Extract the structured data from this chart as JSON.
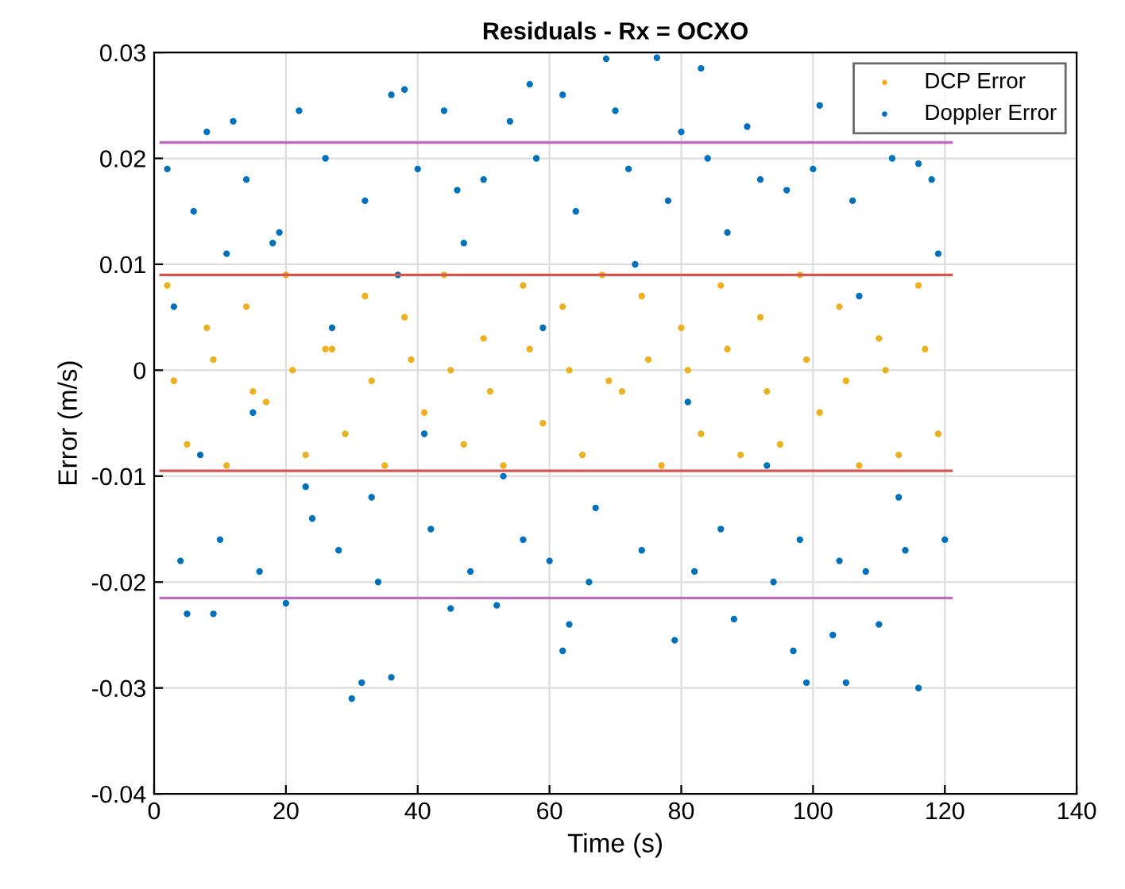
{
  "chart_data": {
    "type": "scatter",
    "title": "Residuals - Rx = OCXO",
    "xlabel": "Time (s)",
    "ylabel": "Error (m/s)",
    "xlim": [
      0,
      140
    ],
    "xticks": [
      0,
      20,
      40,
      60,
      80,
      100,
      120,
      140
    ],
    "ylim": [
      -0.04,
      0.03
    ],
    "yticks": [
      -0.04,
      -0.03,
      -0.02,
      -0.01,
      0,
      0.01,
      0.02,
      0.03
    ],
    "grid": true,
    "legend": "top right",
    "marker": "circle",
    "series": [
      {
        "type": "line",
        "marker": "none",
        "color": "#c06bc0",
        "x": [
          1,
          121
        ],
        "values": [
          0.0215,
          0.0215
        ]
      },
      {
        "type": "line",
        "marker": "none",
        "color": "#c06bc0",
        "x": [
          1,
          121
        ],
        "values": [
          -0.0215,
          -0.0215
        ]
      },
      {
        "name": "Doppler Error",
        "color": "#0072bd",
        "x": [
          68.6,
          76.3,
          83,
          57,
          62,
          36,
          38,
          22,
          8,
          12,
          44,
          54,
          70,
          80,
          101,
          90,
          116,
          30,
          31.5,
          36,
          62,
          79,
          99,
          105,
          116,
          97,
          103,
          5,
          9,
          20,
          45,
          52,
          63,
          88,
          110,
          2,
          4,
          6,
          10,
          14,
          16,
          18,
          24,
          26,
          28,
          32,
          34,
          40,
          42,
          46,
          48,
          50,
          56,
          58,
          60,
          64,
          66,
          72,
          74,
          78,
          82,
          84,
          86,
          92,
          94,
          96,
          98,
          100,
          104,
          106,
          108,
          112,
          114,
          118,
          120,
          3,
          7,
          11,
          15,
          19,
          23,
          27,
          33,
          37,
          41,
          47,
          53,
          59,
          67,
          73,
          81,
          87,
          93,
          107,
          113,
          119
        ],
        "values": [
          0.0294,
          0.0295,
          0.0285,
          0.027,
          0.026,
          0.026,
          0.0265,
          0.0245,
          0.0225,
          0.0235,
          0.0245,
          0.0235,
          0.0245,
          0.0225,
          0.025,
          0.023,
          0.0195,
          -0.031,
          -0.0295,
          -0.029,
          -0.0265,
          -0.0255,
          -0.0295,
          -0.0295,
          -0.03,
          -0.0265,
          -0.025,
          -0.023,
          -0.023,
          -0.022,
          -0.0225,
          -0.0222,
          -0.024,
          -0.0235,
          -0.024,
          0.019,
          -0.018,
          0.015,
          -0.016,
          0.018,
          -0.019,
          0.012,
          -0.014,
          0.02,
          -0.017,
          0.016,
          -0.02,
          0.019,
          -0.015,
          0.017,
          -0.019,
          0.018,
          -0.016,
          0.02,
          -0.018,
          0.015,
          -0.02,
          0.019,
          -0.017,
          0.016,
          -0.019,
          0.02,
          -0.015,
          0.018,
          -0.02,
          0.017,
          -0.016,
          0.019,
          -0.018,
          0.016,
          -0.019,
          0.02,
          -0.017,
          0.018,
          -0.016,
          0.006,
          -0.008,
          0.011,
          -0.004,
          0.013,
          -0.011,
          0.004,
          -0.012,
          0.009,
          -0.006,
          0.012,
          -0.01,
          0.004,
          -0.013,
          0.01,
          -0.003,
          0.013,
          -0.009,
          0.007,
          -0.012,
          0.011
        ]
      },
      {
        "name": "DCP Error",
        "color": "#edb120",
        "x": [
          2,
          5,
          8,
          11,
          14,
          17,
          20,
          23,
          26,
          29,
          32,
          35,
          38,
          41,
          44,
          47,
          50,
          53,
          56,
          59,
          62,
          65,
          68,
          71,
          74,
          77,
          80,
          83,
          86,
          89,
          92,
          95,
          98,
          101,
          104,
          107,
          110,
          113,
          116,
          119,
          3,
          9,
          15,
          21,
          27,
          33,
          39,
          45,
          51,
          57,
          63,
          69,
          75,
          81,
          87,
          93,
          99,
          105,
          111,
          117
        ],
        "values": [
          0.008,
          -0.007,
          0.004,
          -0.009,
          0.006,
          -0.003,
          0.009,
          -0.008,
          0.002,
          -0.006,
          0.007,
          -0.009,
          0.005,
          -0.004,
          0.009,
          -0.007,
          0.003,
          -0.009,
          0.008,
          -0.005,
          0.006,
          -0.008,
          0.009,
          -0.002,
          0.007,
          -0.009,
          0.004,
          -0.006,
          0.008,
          -0.008,
          0.005,
          -0.007,
          0.009,
          -0.004,
          0.006,
          -0.009,
          0.003,
          -0.008,
          0.008,
          -0.006,
          -0.001,
          0.001,
          -0.002,
          0.0,
          0.002,
          -0.001,
          0.001,
          0.0,
          -0.002,
          0.002,
          0.0,
          -0.001,
          0.001,
          0.0,
          0.002,
          -0.002,
          0.001,
          -0.001,
          0.0,
          0.002
        ]
      },
      {
        "type": "line",
        "marker": "none",
        "color": "#d9534f",
        "x": [
          1,
          121
        ],
        "values": [
          0.009,
          0.009
        ]
      },
      {
        "type": "line",
        "marker": "none",
        "color": "#d9534f",
        "x": [
          1,
          121
        ],
        "values": [
          -0.0095,
          -0.0095
        ]
      }
    ]
  }
}
